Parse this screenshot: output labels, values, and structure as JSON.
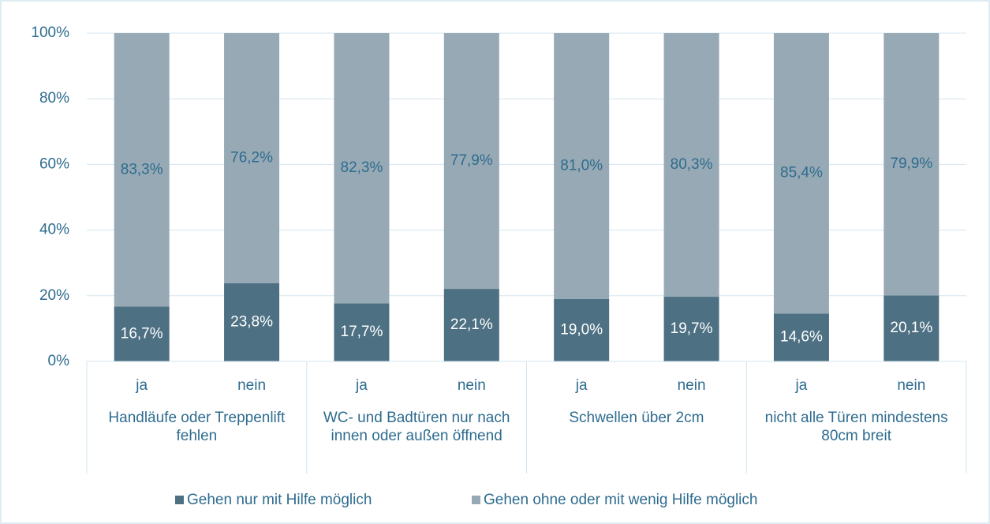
{
  "chart_data": {
    "type": "bar",
    "stacked": true,
    "categories": [
      "ja",
      "nein",
      "ja",
      "nein",
      "ja",
      "nein",
      "ja",
      "nein"
    ],
    "groups": [
      "Handläufe oder Treppenlift fehlen",
      "WC- und Badtüren nur nach innen oder außen öffnend",
      "Schwellen über 2cm",
      "nicht alle Türen mindestens 80cm breit"
    ],
    "series": [
      {
        "name": "Gehen nur mit Hilfe möglich",
        "color": "#4d7083",
        "values": [
          16.7,
          23.8,
          17.7,
          22.1,
          19.0,
          19.7,
          14.6,
          20.1
        ],
        "value_labels": [
          "16,7%",
          "23,8%",
          "17,7%",
          "22,1%",
          "19,0%",
          "19,7%",
          "14,6%",
          "20,1%"
        ]
      },
      {
        "name": "Gehen ohne oder mit wenig Hilfe möglich",
        "color": "#97a9b4",
        "values": [
          83.3,
          76.2,
          82.3,
          77.9,
          81.0,
          80.3,
          85.4,
          79.9
        ],
        "value_labels": [
          "83,3%",
          "76,2%",
          "82,3%",
          "77,9%",
          "81,0%",
          "80,3%",
          "85,4%",
          "79,9%"
        ]
      }
    ],
    "ylim": [
      0,
      100
    ],
    "yticks": [
      {
        "value": 0,
        "label": "0%"
      },
      {
        "value": 20,
        "label": "20%"
      },
      {
        "value": 40,
        "label": "40%"
      },
      {
        "value": 60,
        "label": "60%"
      },
      {
        "value": 80,
        "label": "80%"
      },
      {
        "value": 100,
        "label": "100%"
      }
    ],
    "grid": true,
    "legend": "bottom"
  }
}
